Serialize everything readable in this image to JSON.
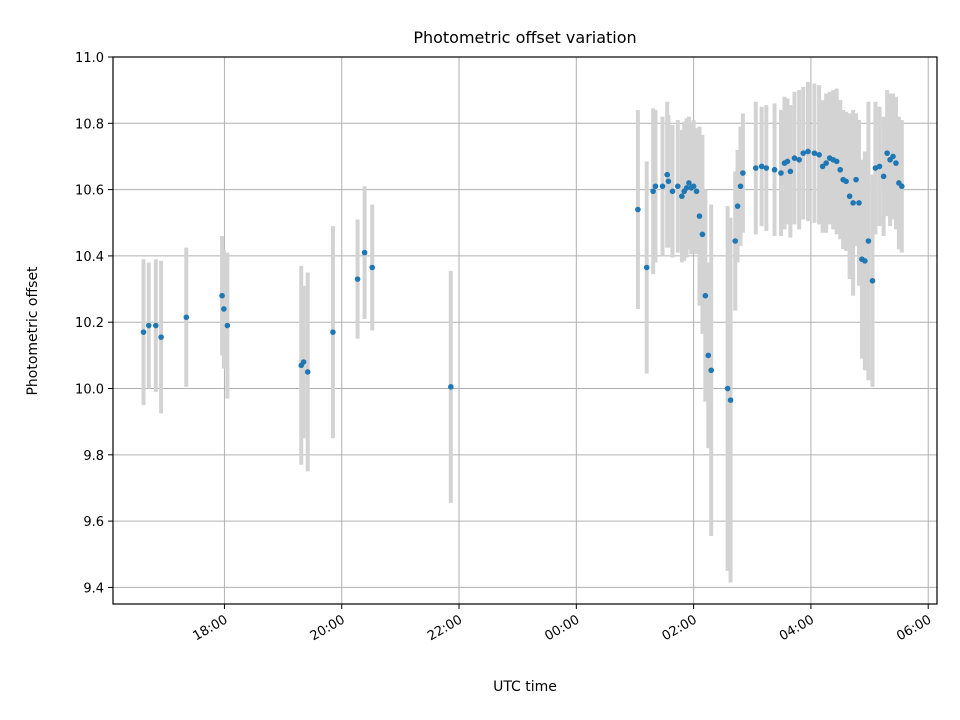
{
  "chart_data": {
    "type": "scatter",
    "title": "Photometric offset variation",
    "xlabel": "UTC time",
    "ylabel": "Photometric offset",
    "ylim": [
      9.35,
      11.0
    ],
    "xlim_hours": [
      16.1,
      30.15
    ],
    "grid": true,
    "yticks": [
      {
        "value": 9.4,
        "label": "9.4"
      },
      {
        "value": 9.6,
        "label": "9.6"
      },
      {
        "value": 9.8,
        "label": "9.8"
      },
      {
        "value": 10.0,
        "label": "10.0"
      },
      {
        "value": 10.2,
        "label": "10.2"
      },
      {
        "value": 10.4,
        "label": "10.4"
      },
      {
        "value": 10.6,
        "label": "10.6"
      },
      {
        "value": 10.8,
        "label": "10.8"
      },
      {
        "value": 11.0,
        "label": "11.0"
      }
    ],
    "xticks": [
      {
        "hour": 18,
        "label": "18:00"
      },
      {
        "hour": 20,
        "label": "20:00"
      },
      {
        "hour": 22,
        "label": "22:00"
      },
      {
        "hour": 24,
        "label": "00:00"
      },
      {
        "hour": 26,
        "label": "02:00"
      },
      {
        "hour": 28,
        "label": "04:00"
      },
      {
        "hour": 30,
        "label": "06:00"
      }
    ],
    "colors": {
      "point": "#1f77b4",
      "errorbar": "#d3d3d3",
      "grid": "#b0b0b0"
    },
    "series": [
      {
        "name": "offset",
        "hours": [
          16.62,
          16.71,
          16.83,
          16.92,
          17.35,
          17.96,
          17.99,
          18.05,
          19.31,
          19.35,
          19.42,
          19.85,
          20.27,
          20.39,
          20.52,
          21.86,
          25.05,
          25.2,
          25.31,
          25.35,
          25.47,
          25.55,
          25.57,
          25.64,
          25.73,
          25.8,
          25.84,
          25.88,
          25.92,
          25.96,
          26.0,
          26.05,
          26.1,
          26.15,
          26.2,
          26.25,
          26.3,
          26.58,
          26.63,
          26.71,
          26.75,
          26.8,
          26.84,
          27.06,
          27.16,
          27.24,
          27.38,
          27.49,
          27.55,
          27.6,
          27.65,
          27.72,
          27.8,
          27.87,
          27.95,
          28.06,
          28.14,
          28.2,
          28.26,
          28.32,
          28.38,
          28.44,
          28.5,
          28.55,
          28.6,
          28.66,
          28.72,
          28.77,
          28.82,
          28.87,
          28.92,
          28.98,
          29.05,
          29.1,
          29.17,
          29.24,
          29.3,
          29.35,
          29.4,
          29.45,
          29.5,
          29.55
        ],
        "values": [
          10.17,
          10.19,
          10.19,
          10.155,
          10.215,
          10.28,
          10.24,
          10.19,
          10.07,
          10.08,
          10.05,
          10.17,
          10.33,
          10.41,
          10.365,
          10.005,
          10.54,
          10.365,
          10.595,
          10.61,
          10.61,
          10.645,
          10.625,
          10.595,
          10.61,
          10.58,
          10.595,
          10.605,
          10.62,
          10.605,
          10.61,
          10.595,
          10.52,
          10.465,
          10.28,
          10.1,
          10.055,
          10.0,
          9.965,
          10.445,
          10.55,
          10.61,
          10.65,
          10.665,
          10.67,
          10.665,
          10.66,
          10.65,
          10.68,
          10.685,
          10.655,
          10.695,
          10.69,
          10.71,
          10.715,
          10.71,
          10.705,
          10.67,
          10.68,
          10.695,
          10.69,
          10.685,
          10.66,
          10.63,
          10.625,
          10.58,
          10.56,
          10.63,
          10.56,
          10.39,
          10.385,
          10.445,
          10.325,
          10.665,
          10.67,
          10.64,
          10.71,
          10.69,
          10.7,
          10.68,
          10.62,
          10.61
        ],
        "errors": [
          0.22,
          0.19,
          0.2,
          0.23,
          0.21,
          0.18,
          0.18,
          0.22,
          0.3,
          0.23,
          0.3,
          0.32,
          0.18,
          0.2,
          0.19,
          0.35,
          0.3,
          0.32,
          0.25,
          0.23,
          0.21,
          0.22,
          0.2,
          0.2,
          0.2,
          0.2,
          0.21,
          0.21,
          0.2,
          0.2,
          0.2,
          0.19,
          0.27,
          0.3,
          0.32,
          0.28,
          0.5,
          0.55,
          0.55,
          0.21,
          0.17,
          0.18,
          0.18,
          0.2,
          0.18,
          0.19,
          0.2,
          0.19,
          0.2,
          0.19,
          0.2,
          0.2,
          0.21,
          0.2,
          0.21,
          0.21,
          0.21,
          0.2,
          0.21,
          0.2,
          0.21,
          0.22,
          0.21,
          0.21,
          0.21,
          0.25,
          0.28,
          0.2,
          0.25,
          0.3,
          0.33,
          0.42,
          0.32,
          0.2,
          0.18,
          0.18,
          0.19,
          0.2,
          0.19,
          0.2,
          0.2,
          0.2
        ]
      }
    ]
  }
}
